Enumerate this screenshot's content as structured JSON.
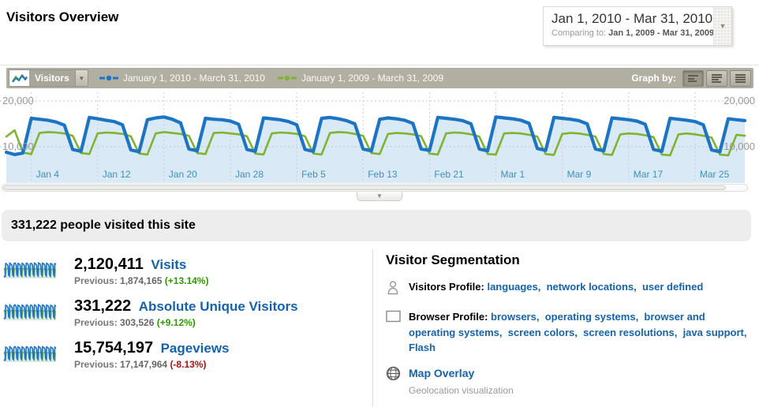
{
  "page": {
    "title": "Visitors Overview"
  },
  "icons": {
    "dropdown_arrow": "▼"
  },
  "colors": {
    "line_2010": "#1b75c4",
    "line_2009": "#7fb431",
    "area_fill": "#d9e9f6",
    "link": "#1463ac",
    "positive": "#2e9b00",
    "negative": "#aa1111",
    "toolbar_bg": "#b1afa2",
    "xtick_label": "#4191b4"
  },
  "date_selector": {
    "range": "Jan 1, 2010 - Mar 31, 2010",
    "comparing_prefix": "Comparing to:",
    "comparing_range": "Jan 1, 2009 - Mar 31, 2009"
  },
  "toolbar": {
    "metric_label": "Visitors",
    "graph_by_label": "Graph by:",
    "legend": [
      {
        "label": "January 1, 2010 - March 31, 2010",
        "color": "#1b75c4"
      },
      {
        "label": "January 1, 2009 - March 31, 2009",
        "color": "#7fb431"
      }
    ]
  },
  "chart_data": {
    "type": "line",
    "title": "",
    "xlabel": "",
    "ylabel": "",
    "x_unit": "day",
    "x_range": [
      "Jan 1, 2010",
      "Mar 31, 2010"
    ],
    "ylim": [
      0,
      22000
    ],
    "grid": true,
    "yticks": [
      {
        "value": 10000,
        "label": "10,000"
      },
      {
        "value": 20000,
        "label": "20,000"
      }
    ],
    "xticks": [
      {
        "i": 3,
        "label": "Jan 4"
      },
      {
        "i": 11,
        "label": "Jan 12"
      },
      {
        "i": 19,
        "label": "Jan 20"
      },
      {
        "i": 27,
        "label": "Jan 28"
      },
      {
        "i": 35,
        "label": "Feb 5"
      },
      {
        "i": 43,
        "label": "Feb 13"
      },
      {
        "i": 51,
        "label": "Feb 21"
      },
      {
        "i": 59,
        "label": "Mar 1"
      },
      {
        "i": 67,
        "label": "Mar 9"
      },
      {
        "i": 75,
        "label": "Mar 17"
      },
      {
        "i": 83,
        "label": "Mar 25"
      }
    ],
    "series": [
      {
        "name": "January 1, 2010 - March 31, 2010",
        "color": "#1b75c4",
        "values": [
          8800,
          8300,
          8600,
          16200,
          16000,
          15800,
          15400,
          14700,
          9400,
          9000,
          16400,
          16100,
          15800,
          15500,
          14800,
          9300,
          8900,
          15900,
          16300,
          16500,
          16000,
          15200,
          9500,
          9100,
          16200,
          16000,
          15900,
          15600,
          14900,
          9400,
          9000,
          16300,
          16100,
          15900,
          15500,
          14800,
          9400,
          9000,
          16200,
          16400,
          16100,
          15700,
          15000,
          9500,
          9100,
          16000,
          16300,
          16100,
          15800,
          15100,
          9500,
          9200,
          16400,
          16200,
          16000,
          15700,
          15000,
          9500,
          9100,
          16500,
          16300,
          16100,
          15800,
          15100,
          9600,
          9200,
          16400,
          16200,
          16000,
          15700,
          15000,
          9500,
          9100,
          16300,
          16100,
          15900,
          15600,
          14900,
          9400,
          9000,
          16200,
          16000,
          15800,
          15500,
          14800,
          9300,
          8900,
          16100,
          15900,
          15700
        ]
      },
      {
        "name": "January 1, 2009 - March 31, 2009",
        "color": "#7fb431",
        "values": [
          12200,
          13600,
          8700,
          8400,
          13000,
          13200,
          13100,
          12900,
          12400,
          8600,
          8400,
          12900,
          13100,
          13000,
          12800,
          12300,
          8500,
          8300,
          12900,
          13200,
          13000,
          12800,
          12400,
          8600,
          8400,
          13000,
          13100,
          12900,
          12700,
          12300,
          8500,
          8300,
          12900,
          13100,
          13000,
          12800,
          12300,
          8500,
          8300,
          13000,
          13200,
          13100,
          12800,
          12400,
          8600,
          8400,
          12800,
          13000,
          12900,
          12700,
          12300,
          8500,
          8300,
          12900,
          13100,
          13000,
          12700,
          12200,
          8400,
          8300,
          12900,
          13000,
          12900,
          12600,
          12200,
          8400,
          8200,
          12800,
          13000,
          12900,
          12600,
          12200,
          8400,
          8200,
          12700,
          12900,
          12800,
          12500,
          12100,
          8300,
          8100,
          12700,
          12900,
          12700,
          12400,
          12000,
          8300,
          8100,
          12600,
          12400
        ]
      }
    ]
  },
  "summary_bar": {
    "text": "331,222 people visited this site"
  },
  "metrics": [
    {
      "value": "2,120,411",
      "label": "Visits",
      "previous_label": "Previous:",
      "previous_value": "1,874,165",
      "change": "(+13.14%)",
      "change_color": "#2e9b00"
    },
    {
      "value": "331,222",
      "label": "Absolute Unique Visitors",
      "previous_label": "Previous:",
      "previous_value": "303,526",
      "change": "(+9.12%)",
      "change_color": "#2e9b00"
    },
    {
      "value": "15,754,197",
      "label": "Pageviews",
      "previous_label": "Previous:",
      "previous_value": "17,147,964",
      "change": "(-8.13%)",
      "change_color": "#aa1111"
    }
  ],
  "segmentation": {
    "title": "Visitor Segmentation",
    "items": [
      {
        "icon": "person-icon",
        "label": "Visitors Profile:",
        "links": [
          "languages",
          "network locations",
          "user defined"
        ]
      },
      {
        "icon": "browser-icon",
        "label": "Browser Profile:",
        "links": [
          "browsers",
          "operating systems",
          "browser and operating systems",
          "screen colors",
          "screen resolutions",
          "java support",
          "Flash"
        ]
      },
      {
        "icon": "globe-icon",
        "link_label": "Map Overlay",
        "sub": "Geolocation visualization"
      }
    ]
  }
}
